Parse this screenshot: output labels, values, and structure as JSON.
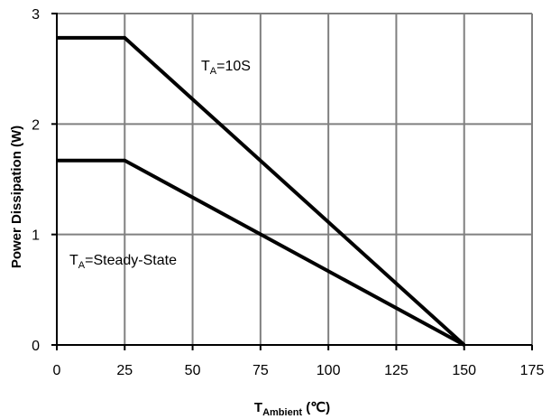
{
  "chart_data": {
    "type": "line",
    "xlabel": {
      "main": "T",
      "sub": "Ambient",
      "unit": " (℃)"
    },
    "ylabel": "Power Dissipation (W)",
    "xlim": [
      0,
      175
    ],
    "ylim": [
      0,
      3
    ],
    "x_ticks": [
      "0",
      "25",
      "50",
      "75",
      "100",
      "125",
      "150",
      "175"
    ],
    "y_ticks": [
      "0",
      "1",
      "2",
      "3"
    ],
    "grid": true,
    "series": [
      {
        "label": {
          "main": "T",
          "sub": "A",
          "rest": "=10S"
        },
        "x": [
          0,
          25,
          150
        ],
        "y": [
          2.78,
          2.78,
          0
        ]
      },
      {
        "label": {
          "main": "T",
          "sub": "A",
          "rest": "=Steady-State"
        },
        "x": [
          0,
          25,
          150
        ],
        "y": [
          1.67,
          1.67,
          0
        ]
      }
    ],
    "colors": {
      "grid": "#808080",
      "line": "#000000",
      "axis": "#000000"
    }
  }
}
